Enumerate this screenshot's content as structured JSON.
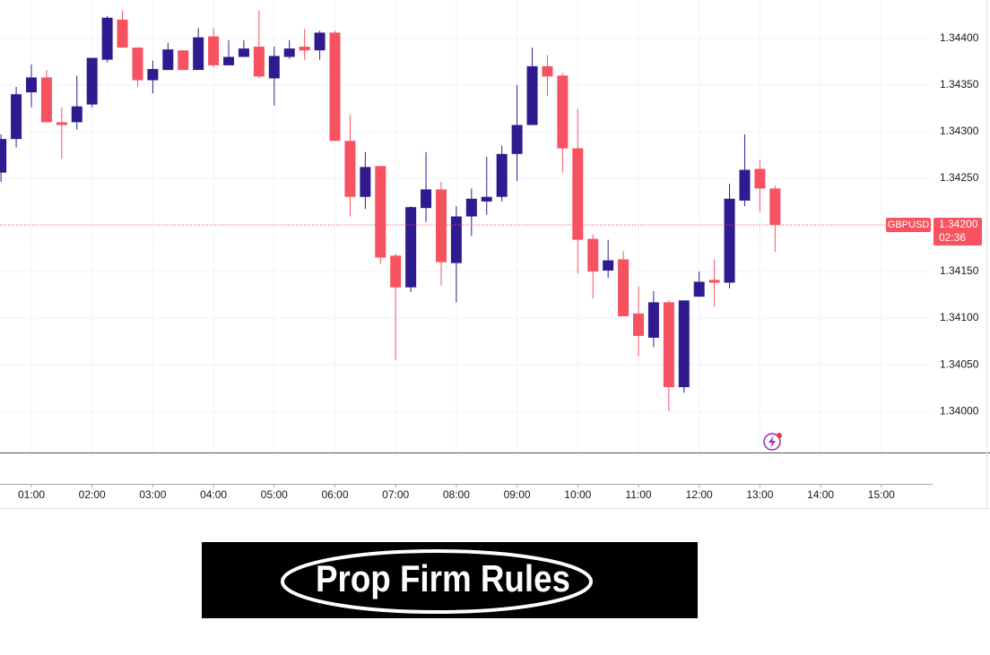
{
  "chart_data": {
    "type": "candlestick",
    "x": [
      0.5,
      0.75,
      1,
      1.25,
      1.5,
      1.75,
      2,
      2.25,
      2.5,
      2.75,
      3,
      3.25,
      3.5,
      3.75,
      4,
      4.25,
      4.5,
      4.75,
      5,
      5.25,
      5.5,
      5.75,
      6,
      6.25,
      6.5,
      6.75,
      7,
      7.25,
      7.5,
      7.75,
      8,
      8.25,
      8.5,
      8.75,
      9,
      9.25,
      9.5,
      9.75,
      10,
      10.25,
      10.5,
      10.75,
      11,
      11.25,
      11.5,
      11.75,
      12,
      12.25,
      12.5,
      12.75,
      13,
      13.25
    ],
    "open": [
      1.34256,
      1.34292,
      1.34342,
      1.34358,
      1.3431,
      1.3431,
      1.34329,
      1.34377,
      1.3442,
      1.3439,
      1.34355,
      1.34366,
      1.34387,
      1.34366,
      1.34402,
      1.34371,
      1.3438,
      1.34391,
      1.34357,
      1.3438,
      1.34391,
      1.34387,
      1.34406,
      1.3429,
      1.3423,
      1.34263,
      1.34167,
      1.34133,
      1.34218,
      1.34238,
      1.34159,
      1.34209,
      1.34225,
      1.3423,
      1.34276,
      1.34307,
      1.3437,
      1.3436,
      1.34282,
      1.34185,
      1.34151,
      1.34163,
      1.34105,
      1.34079,
      1.34117,
      1.34026,
      1.34123,
      1.34141,
      1.34138,
      1.34226,
      1.3426,
      1.34239
    ],
    "high": [
      1.34297,
      1.34348,
      1.34372,
      1.34366,
      1.34326,
      1.3436,
      1.34379,
      1.34424,
      1.3443,
      1.3439,
      1.34376,
      1.34395,
      1.34387,
      1.34411,
      1.34411,
      1.34398,
      1.34398,
      1.3443,
      1.34391,
      1.34398,
      1.3441,
      1.34408,
      1.34408,
      1.34318,
      1.34278,
      1.34263,
      1.34169,
      1.3422,
      1.34278,
      1.34246,
      1.3422,
      1.34239,
      1.34273,
      1.34285,
      1.3435,
      1.3439,
      1.34382,
      1.34363,
      1.34324,
      1.3419,
      1.34184,
      1.34172,
      1.34134,
      1.34129,
      1.34119,
      1.34119,
      1.3415,
      1.34163,
      1.34244,
      1.34297,
      1.34269,
      1.34242
    ],
    "low": [
      1.34246,
      1.34283,
      1.34326,
      1.3431,
      1.34271,
      1.34302,
      1.34326,
      1.34374,
      1.3439,
      1.34348,
      1.34341,
      1.34366,
      1.34366,
      1.34366,
      1.34369,
      1.34371,
      1.3438,
      1.34357,
      1.34328,
      1.34378,
      1.34377,
      1.34377,
      1.3429,
      1.34209,
      1.34217,
      1.34158,
      1.34055,
      1.34128,
      1.34203,
      1.34135,
      1.34117,
      1.34188,
      1.34211,
      1.34225,
      1.34247,
      1.34307,
      1.34338,
      1.34256,
      1.34148,
      1.34121,
      1.34143,
      1.34102,
      1.34059,
      1.34069,
      1.34,
      1.3402,
      1.34123,
      1.34112,
      1.34132,
      1.3422,
      1.34214,
      1.34171
    ],
    "close": [
      1.34292,
      1.3434,
      1.34358,
      1.3431,
      1.34307,
      1.34327,
      1.34379,
      1.34422,
      1.3439,
      1.34355,
      1.34367,
      1.34388,
      1.34366,
      1.34401,
      1.34371,
      1.3438,
      1.34389,
      1.34359,
      1.34381,
      1.34389,
      1.34387,
      1.34406,
      1.3429,
      1.3423,
      1.34262,
      1.34165,
      1.34133,
      1.34219,
      1.34238,
      1.3416,
      1.34209,
      1.34228,
      1.3423,
      1.34276,
      1.34307,
      1.3437,
      1.34359,
      1.34282,
      1.34184,
      1.3415,
      1.34162,
      1.34102,
      1.34081,
      1.34117,
      1.34026,
      1.34119,
      1.34139,
      1.34138,
      1.34228,
      1.34259,
      1.34239,
      1.342
    ],
    "up_color": "#2f1b8f",
    "down_color": "#f7525f",
    "xlim": [
      0.483,
      15.845
    ],
    "ylim": [
      1.33956,
      1.34441
    ],
    "xticks": [
      {
        "value": 1,
        "label": "01:00"
      },
      {
        "value": 2,
        "label": "02:00"
      },
      {
        "value": 3,
        "label": "03:00"
      },
      {
        "value": 4,
        "label": "04:00"
      },
      {
        "value": 5,
        "label": "05:00"
      },
      {
        "value": 6,
        "label": "06:00"
      },
      {
        "value": 7,
        "label": "07:00"
      },
      {
        "value": 8,
        "label": "08:00"
      },
      {
        "value": 9,
        "label": "09:00"
      },
      {
        "value": 10,
        "label": "10:00"
      },
      {
        "value": 11,
        "label": "11:00"
      },
      {
        "value": 12,
        "label": "12:00"
      },
      {
        "value": 13,
        "label": "13:00"
      },
      {
        "value": 14,
        "label": "14:00"
      },
      {
        "value": 15,
        "label": "15:00"
      }
    ],
    "yticks": [
      {
        "value": 1.344,
        "label": "1.34400"
      },
      {
        "value": 1.3435,
        "label": "1.34350"
      },
      {
        "value": 1.343,
        "label": "1.34300"
      },
      {
        "value": 1.3425,
        "label": "1.34250"
      },
      {
        "value": 1.342,
        "label": "1.34200"
      },
      {
        "value": 1.3415,
        "label": "1.34150"
      },
      {
        "value": 1.341,
        "label": "1.34100"
      },
      {
        "value": 1.3405,
        "label": "1.34050"
      },
      {
        "value": 1.34,
        "label": "1.34000"
      }
    ],
    "grid": true,
    "price_marker": {
      "symbol": "GBPUSD",
      "price": {
        "value": 1.342,
        "label": "1.34200"
      },
      "countdown": "02:36",
      "color": "#f7525f"
    }
  },
  "banner": {
    "text": "Prop Firm Rules"
  }
}
